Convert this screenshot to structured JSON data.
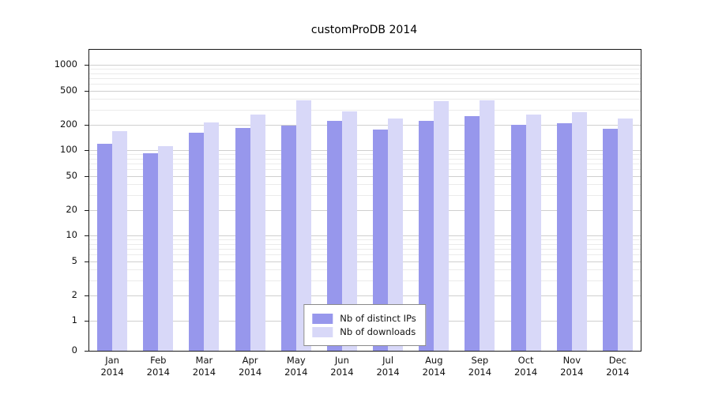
{
  "chart_data": {
    "type": "bar",
    "title": "customProDB 2014",
    "categories": [
      "Jan",
      "Feb",
      "Mar",
      "Apr",
      "May",
      "Jun",
      "Jul",
      "Aug",
      "Sep",
      "Oct",
      "Nov",
      "Dec"
    ],
    "x_sublabel": "2014",
    "series": [
      {
        "name": "Nb of distinct IPs",
        "color": "#9797ec",
        "values": [
          120,
          93,
          160,
          185,
          195,
          220,
          175,
          220,
          255,
          200,
          210,
          180
        ]
      },
      {
        "name": "Nb of downloads",
        "color": "#d8d8f8",
        "values": [
          170,
          113,
          215,
          265,
          390,
          290,
          235,
          375,
          390,
          265,
          280,
          235
        ]
      }
    ],
    "axis": {
      "scale": "pseudo-log",
      "ylim": [
        0,
        1000
      ],
      "y_ticks": [
        0,
        1,
        2,
        5,
        10,
        20,
        50,
        100,
        200,
        500,
        1000
      ],
      "minor_ticks": [
        3,
        4,
        6,
        7,
        8,
        9,
        30,
        40,
        60,
        70,
        80,
        90,
        300,
        400,
        600,
        700,
        800,
        900
      ],
      "grid": true
    },
    "legend_position": "inside-bottom-center"
  }
}
